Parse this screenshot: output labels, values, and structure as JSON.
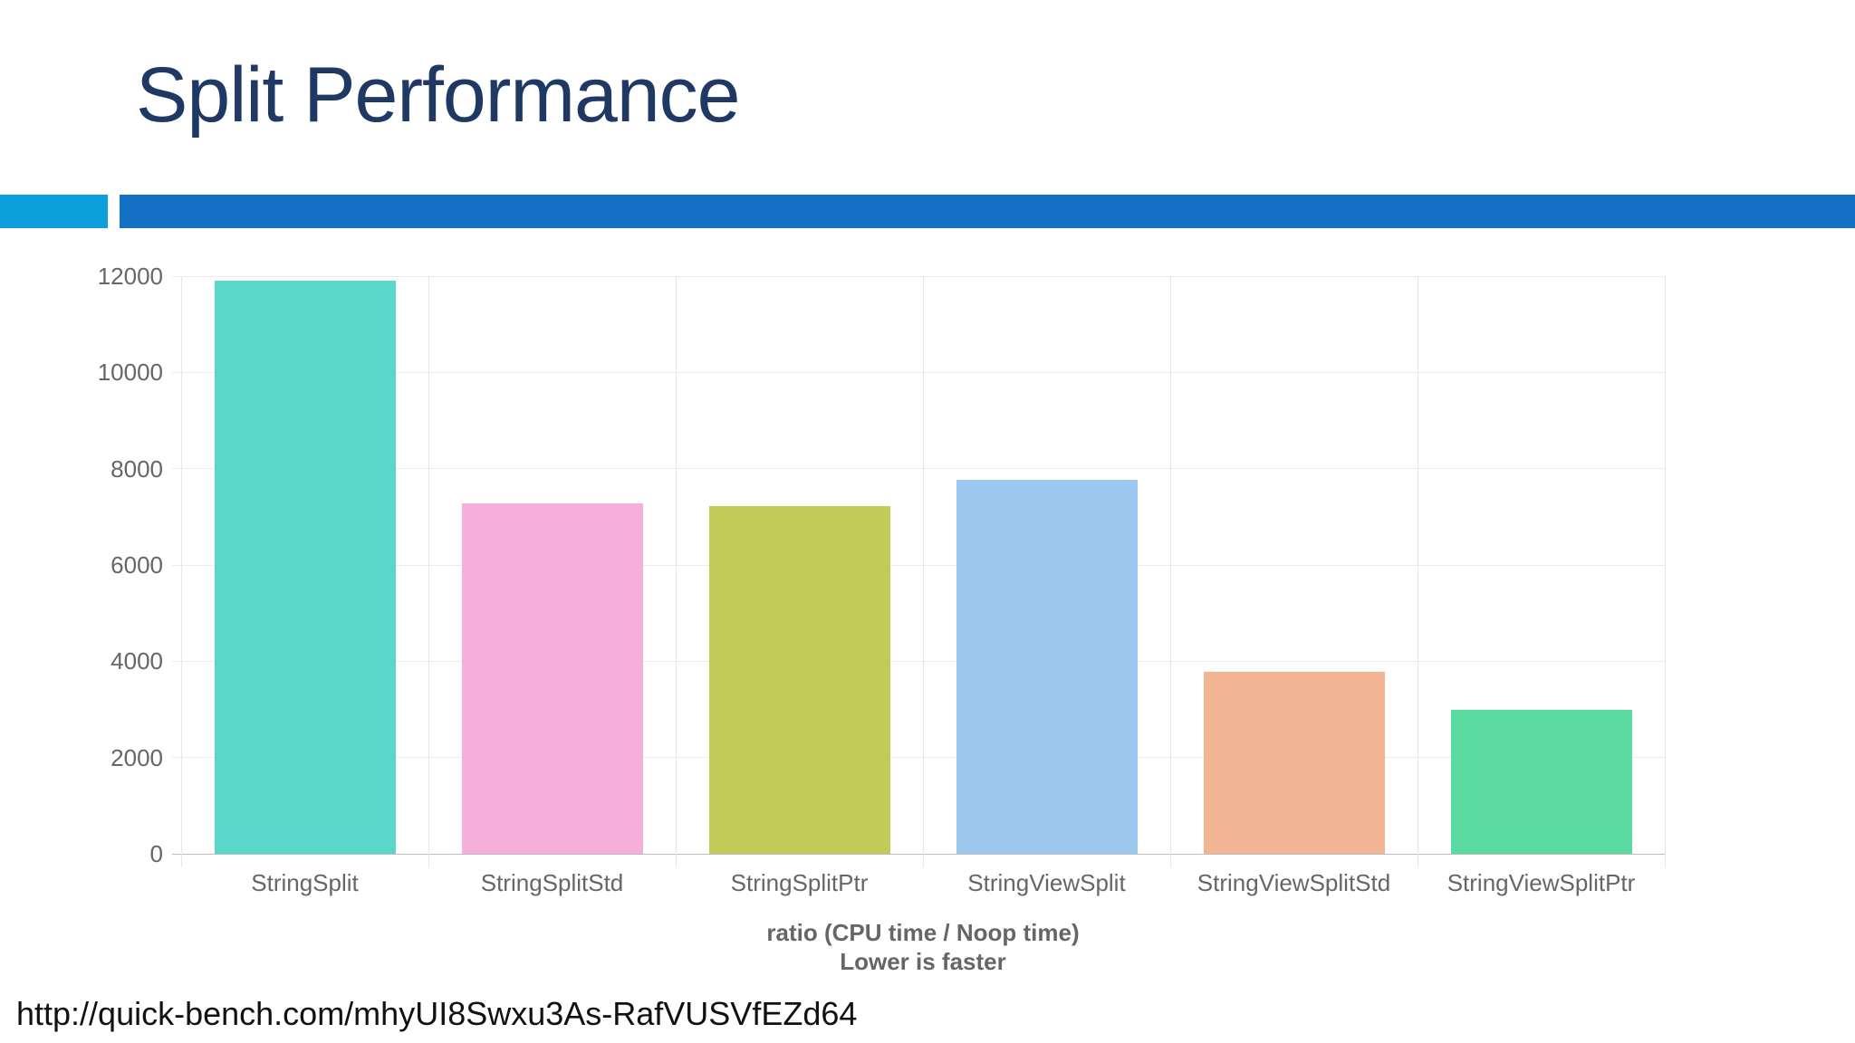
{
  "slide": {
    "title": "Split Performance",
    "title_color": "#1F3864",
    "divider": {
      "accent_color": "#0C9FDB",
      "bar_color": "#1470C2"
    },
    "footer_url": "http://quick-bench.com/mhyUI8Swxu3As-RafVUSVfEZd64"
  },
  "chart_data": {
    "type": "bar",
    "categories": [
      "StringSplit",
      "StringSplitStd",
      "StringSplitPtr",
      "StringViewSplit",
      "StringViewSplitStd",
      "StringViewSplitPtr"
    ],
    "values": [
      11900,
      7280,
      7220,
      7770,
      3780,
      2990
    ],
    "bar_colors": [
      "#59D7C8",
      "#F6AEDA",
      "#C2CB57",
      "#9DC9F0",
      "#F3B493",
      "#5BDBA1"
    ],
    "xlabel": "ratio (CPU time / Noop time)",
    "xlabel_line2": "Lower is faster",
    "ylabel": "",
    "ylim": [
      0,
      12000
    ],
    "yticks": [
      0,
      2000,
      4000,
      6000,
      8000,
      10000,
      12000
    ],
    "grid": true,
    "legend": "none",
    "tick_color": "#666666",
    "axis_title_color": "#666666"
  }
}
